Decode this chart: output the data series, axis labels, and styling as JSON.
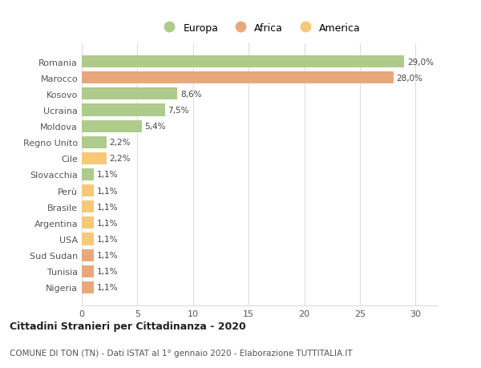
{
  "categories": [
    "Nigeria",
    "Tunisia",
    "Sud Sudan",
    "USA",
    "Argentina",
    "Brasile",
    "Perù",
    "Slovacchia",
    "Cile",
    "Regno Unito",
    "Moldova",
    "Ucraina",
    "Kosovo",
    "Marocco",
    "Romania"
  ],
  "values": [
    1.1,
    1.1,
    1.1,
    1.1,
    1.1,
    1.1,
    1.1,
    1.1,
    2.2,
    2.2,
    5.4,
    7.5,
    8.6,
    28.0,
    29.0
  ],
  "labels": [
    "1,1%",
    "1,1%",
    "1,1%",
    "1,1%",
    "1,1%",
    "1,1%",
    "1,1%",
    "1,1%",
    "2,2%",
    "2,2%",
    "5,4%",
    "7,5%",
    "8,6%",
    "28,0%",
    "29,0%"
  ],
  "colors": [
    "#E8A87C",
    "#E8A87C",
    "#E8A87C",
    "#F5C87A",
    "#F5C87A",
    "#F5C87A",
    "#F5C87A",
    "#AECB8B",
    "#F5C87A",
    "#AECB8B",
    "#AECB8B",
    "#AECB8B",
    "#AECB8B",
    "#E8A87C",
    "#AECB8B"
  ],
  "legend_labels": [
    "Europa",
    "Africa",
    "America"
  ],
  "legend_colors": [
    "#AECB8B",
    "#E8A87C",
    "#F5C87A"
  ],
  "title": "Cittadini Stranieri per Cittadinanza - 2020",
  "subtitle": "COMUNE DI TON (TN) - Dati ISTAT al 1° gennaio 2020 - Elaborazione TUTTITALIA.IT",
  "xlim": [
    0,
    32
  ],
  "xticks": [
    0,
    5,
    10,
    15,
    20,
    25,
    30
  ],
  "bg_color": "#ffffff",
  "grid_color": "#dddddd",
  "bar_height": 0.75,
  "label_fontsize": 7.5,
  "tick_fontsize": 8,
  "title_fontsize": 9,
  "subtitle_fontsize": 7.5
}
